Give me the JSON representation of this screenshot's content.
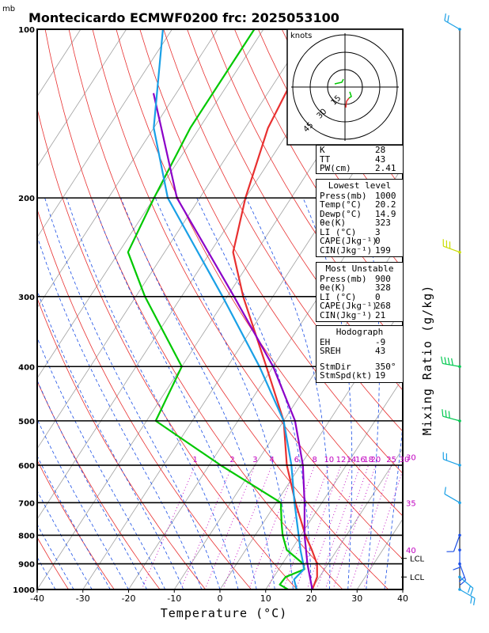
{
  "header": {
    "unit_mb": "mb",
    "title": "Montecicardo ECMWF0200 frc: 2025053100"
  },
  "chart_data": {
    "type": "line",
    "title": "Montecicardo ECMWF0200 frc: 2025053100",
    "xlabel": "Temperature (°C)",
    "ylabel": "mb",
    "right_label": "Mixing Ratio (g/kg)",
    "xlim": [
      -40,
      40
    ],
    "ylim": [
      1000,
      100
    ],
    "x_ticks": [
      "-40",
      "-30",
      "-20",
      "-10",
      "0",
      "10",
      "20",
      "30",
      "40"
    ],
    "p_ticks": [
      "1000",
      "900",
      "800",
      "700",
      "600",
      "500",
      "400",
      "300",
      "200",
      "100"
    ],
    "mixing_ratio_labels": [
      "1",
      "2",
      "3",
      "4",
      "6",
      "8",
      "10",
      "12",
      "14",
      "16",
      "18",
      "20",
      "25",
      "30"
    ],
    "theta_e_labels": [
      {
        "label": "30",
        "p": 580
      },
      {
        "label": "35",
        "p": 700
      },
      {
        "label": "40",
        "p": 850
      }
    ],
    "lcl_markers": [
      "LCL",
      "LCL"
    ],
    "series": [
      {
        "name": "Temperature",
        "color": "#e83030",
        "p": [
          1000,
          950,
          900,
          850,
          800,
          700,
          600,
          500,
          400,
          300,
          250,
          200,
          150,
          100
        ],
        "x": [
          20.2,
          19.5,
          17.6,
          14.5,
          11.0,
          4.2,
          -3.0,
          -10.0,
          -21.5,
          -36.5,
          -45.0,
          -50.0,
          -55.0,
          -58.0
        ]
      },
      {
        "name": "Dewpoint",
        "color": "#00c800",
        "p": [
          1000,
          980,
          950,
          920,
          900,
          850,
          800,
          760,
          700,
          600,
          500,
          400,
          300,
          250,
          200,
          150,
          100
        ],
        "x": [
          14.9,
          12.4,
          12.6,
          15.6,
          14.6,
          9.0,
          6.0,
          4.0,
          1.0,
          -17.5,
          -38.0,
          -40.0,
          -58.0,
          -68.0,
          -70.0,
          -72.0,
          -72.0
        ]
      },
      {
        "name": "Parcel",
        "color": "#8b00c8",
        "p": [
          1000,
          900,
          880,
          800,
          700,
          600,
          500,
          400,
          300,
          200,
          130
        ],
        "x": [
          20.2,
          15.5,
          14.6,
          10.8,
          6.2,
          0.5,
          -7.5,
          -20.0,
          -38.5,
          -65.0,
          -85.0
        ]
      },
      {
        "name": "Wet-bulb",
        "color": "#1aa0e6",
        "p": [
          1000,
          960,
          920,
          900,
          850,
          800,
          700,
          600,
          500,
          400,
          300,
          200,
          150,
          100
        ],
        "x": [
          16.8,
          14.8,
          15.5,
          14.6,
          12.0,
          9.5,
          4.0,
          -2.0,
          -10.0,
          -23.0,
          -41.0,
          -67.0,
          -80.0,
          -92.0
        ]
      }
    ]
  },
  "hodograph": {
    "unit": "knots",
    "ring_labels": [
      "15",
      "30",
      "45"
    ]
  },
  "indices": {
    "rows": [
      {
        "k": "K",
        "v": "28"
      },
      {
        "k": "TT",
        "v": "43"
      },
      {
        "k": "PW(cm)",
        "v": "2.41"
      }
    ]
  },
  "lowest": {
    "title": "Lowest level",
    "rows": [
      {
        "k": "Press(mb)",
        "v": "1000"
      },
      {
        "k": "Temp(°C)",
        "v": "20.2"
      },
      {
        "k": "Dewp(°C)",
        "v": "14.9"
      },
      {
        "k": "θe(K)",
        "v": "323"
      },
      {
        "k": "LI (°C)",
        "v": "3"
      },
      {
        "k": "CAPE(Jkg⁻¹)",
        "v": "0"
      },
      {
        "k": "CIN(Jkg⁻¹)",
        "v": "199"
      }
    ]
  },
  "unstable": {
    "title": "Most Unstable",
    "rows": [
      {
        "k": "Press(mb)",
        "v": "900"
      },
      {
        "k": "θe(K)",
        "v": "328"
      },
      {
        "k": "LI (°C)",
        "v": "0"
      },
      {
        "k": "CAPE(Jkg⁻¹)",
        "v": "268"
      },
      {
        "k": "CIN(Jkg⁻¹)",
        "v": "21"
      }
    ]
  },
  "hodo_stats": {
    "title": "Hodograph",
    "rows": [
      {
        "k": "EH",
        "v": "-9"
      },
      {
        "k": "SREH",
        "v": "43"
      },
      {
        "k": "StmDir",
        "v": "350°"
      },
      {
        "k": "StmSpd(kt)",
        "v": "19"
      }
    ]
  },
  "colors": {
    "dry_adiabat": "#e83030",
    "moist_adiabat": "#1a4ee6",
    "mixing_ratio": "#c000c0",
    "isotherm": "#a0a0a0"
  }
}
